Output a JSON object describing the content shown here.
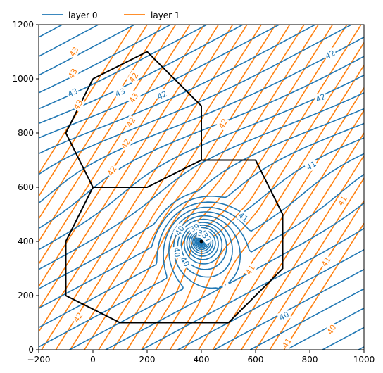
{
  "chart_data": {
    "type": "contour",
    "xlim": [
      -200,
      1000
    ],
    "ylim": [
      0,
      1200
    ],
    "x_ticks": [
      -200,
      0,
      200,
      400,
      600,
      800,
      1000
    ],
    "y_ticks": [
      0,
      200,
      400,
      600,
      800,
      1000,
      1200
    ],
    "x_tick_labels": [
      "−200",
      "0",
      "200",
      "400",
      "600",
      "800",
      "1000"
    ],
    "y_tick_labels": [
      "0",
      "200",
      "400",
      "600",
      "800",
      "1000",
      "1200"
    ],
    "grid": false,
    "legend": {
      "placement": "top-left, above plot",
      "columns": 2
    },
    "series": [
      {
        "name": "layer 0",
        "color": "#1f77b4",
        "contour_levels": [
          36,
          37,
          38,
          39,
          40,
          41,
          42,
          43
        ]
      },
      {
        "name": "layer 1",
        "color": "#ff7f0e",
        "contour_levels": [
          40,
          41,
          42,
          43
        ]
      }
    ],
    "well": {
      "x": 400,
      "y": 400
    },
    "boundary": {
      "color": "#000000",
      "x": [
        0,
        200,
        400,
        400,
        600,
        700,
        700,
        500,
        100,
        -100,
        -100,
        0,
        200,
        400,
        600
      ],
      "y": [
        1000,
        1100,
        900,
        700,
        700,
        500,
        300,
        100,
        100,
        200,
        400,
        600,
        600,
        700,
        700
      ],
      "outline": [
        [
          0,
          1000
        ],
        [
          200,
          1100
        ],
        [
          400,
          900
        ],
        [
          400,
          700
        ],
        [
          600,
          700
        ],
        [
          700,
          500
        ],
        [
          700,
          300
        ],
        [
          500,
          100
        ],
        [
          100,
          100
        ],
        [
          -100,
          200
        ],
        [
          -100,
          400
        ],
        [
          0,
          600
        ],
        [
          -100,
          800
        ],
        [
          0,
          1000
        ]
      ],
      "inner_lines": [
        [
          [
            0,
            600
          ],
          [
            200,
            600
          ],
          [
            400,
            700
          ]
        ]
      ]
    },
    "contour_labels": [
      {
        "series": "layer 1",
        "text": "43",
        "x": -70,
        "y": 1100
      },
      {
        "series": "layer 1",
        "text": "43",
        "x": -75,
        "y": 1020
      },
      {
        "series": "layer 0",
        "text": "43",
        "x": -75,
        "y": 950
      },
      {
        "series": "layer 1",
        "text": "43",
        "x": -55,
        "y": 905
      },
      {
        "series": "layer 0",
        "text": "43",
        "x": 100,
        "y": 950
      },
      {
        "series": "layer 1",
        "text": "42",
        "x": 150,
        "y": 1005
      },
      {
        "series": "layer 1",
        "text": "43",
        "x": 150,
        "y": 930
      },
      {
        "series": "layer 0",
        "text": "42",
        "x": 255,
        "y": 940
      },
      {
        "series": "layer 1",
        "text": "42",
        "x": 140,
        "y": 840
      },
      {
        "series": "layer 1",
        "text": "42",
        "x": 120,
        "y": 760
      },
      {
        "series": "layer 1",
        "text": "42",
        "x": 70,
        "y": 660
      },
      {
        "series": "layer 1",
        "text": "42",
        "x": 480,
        "y": 835
      },
      {
        "series": "layer 0",
        "text": "42",
        "x": 875,
        "y": 1090
      },
      {
        "series": "layer 0",
        "text": "42",
        "x": 840,
        "y": 930
      },
      {
        "series": "layer 0",
        "text": "41",
        "x": 805,
        "y": 680
      },
      {
        "series": "layer 0",
        "text": "41",
        "x": 555,
        "y": 490
      },
      {
        "series": "layer 1",
        "text": "41",
        "x": 920,
        "y": 550
      },
      {
        "series": "layer 1",
        "text": "41",
        "x": 860,
        "y": 325
      },
      {
        "series": "layer 1",
        "text": "41",
        "x": 580,
        "y": 295
      },
      {
        "series": "layer 1",
        "text": "41",
        "x": 715,
        "y": 25
      },
      {
        "series": "layer 1",
        "text": "40",
        "x": 880,
        "y": 75
      },
      {
        "series": "layer 0",
        "text": "40",
        "x": 705,
        "y": 125
      },
      {
        "series": "layer 0",
        "text": "40",
        "x": 320,
        "y": 440
      },
      {
        "series": "layer 0",
        "text": "40",
        "x": 310,
        "y": 360
      },
      {
        "series": "layer 0",
        "text": "40",
        "x": 340,
        "y": 325
      },
      {
        "series": "layer 0",
        "text": "39",
        "x": 375,
        "y": 450
      },
      {
        "series": "layer 0",
        "text": "38",
        "x": 405,
        "y": 430
      },
      {
        "series": "layer 0",
        "text": "37",
        "x": 420,
        "y": 415
      },
      {
        "series": "layer 1",
        "text": "42",
        "x": -55,
        "y": 120
      }
    ]
  }
}
